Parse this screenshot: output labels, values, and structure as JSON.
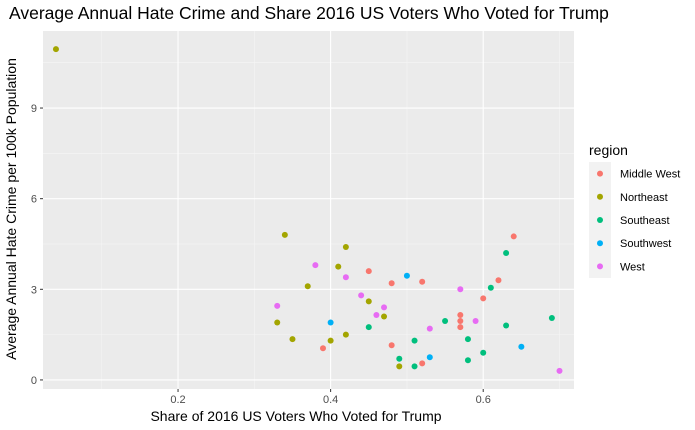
{
  "chart_data": {
    "type": "scatter",
    "title": "Average Annual Hate Crime and Share 2016 US Voters Who Voted for Trump",
    "xlabel": "Share of 2016 US Voters Who Voted for Trump",
    "ylabel": "Average Annual Hate Crime per 100k Population",
    "xlim": [
      0.023,
      0.719
    ],
    "ylim": [
      -0.3,
      11.55
    ],
    "xticks": [
      0.2,
      0.4,
      0.6
    ],
    "yticks": [
      0,
      3,
      6,
      9
    ],
    "grid": true,
    "legend_position": "right",
    "legend_title": "region",
    "series": [
      {
        "name": "Middle West",
        "color": "#F8766D",
        "points": [
          {
            "x": 0.39,
            "y": 1.05
          },
          {
            "x": 0.45,
            "y": 3.6
          },
          {
            "x": 0.48,
            "y": 3.2
          },
          {
            "x": 0.48,
            "y": 1.15
          },
          {
            "x": 0.52,
            "y": 3.25
          },
          {
            "x": 0.52,
            "y": 0.55
          },
          {
            "x": 0.57,
            "y": 2.15
          },
          {
            "x": 0.57,
            "y": 1.95
          },
          {
            "x": 0.57,
            "y": 1.75
          },
          {
            "x": 0.6,
            "y": 2.7
          },
          {
            "x": 0.62,
            "y": 3.3
          },
          {
            "x": 0.64,
            "y": 4.75
          }
        ]
      },
      {
        "name": "Northeast",
        "color": "#A3A500",
        "points": [
          {
            "x": 0.04,
            "y": 10.95
          },
          {
            "x": 0.33,
            "y": 1.9
          },
          {
            "x": 0.34,
            "y": 4.8
          },
          {
            "x": 0.35,
            "y": 1.35
          },
          {
            "x": 0.37,
            "y": 3.1
          },
          {
            "x": 0.4,
            "y": 1.3
          },
          {
            "x": 0.41,
            "y": 3.75
          },
          {
            "x": 0.42,
            "y": 4.4
          },
          {
            "x": 0.42,
            "y": 1.5
          },
          {
            "x": 0.45,
            "y": 2.6
          },
          {
            "x": 0.47,
            "y": 2.1
          },
          {
            "x": 0.49,
            "y": 0.45
          }
        ]
      },
      {
        "name": "Southeast",
        "color": "#00BF7D",
        "points": [
          {
            "x": 0.45,
            "y": 1.75
          },
          {
            "x": 0.49,
            "y": 0.7
          },
          {
            "x": 0.51,
            "y": 1.3
          },
          {
            "x": 0.51,
            "y": 0.45
          },
          {
            "x": 0.55,
            "y": 1.95
          },
          {
            "x": 0.58,
            "y": 1.35
          },
          {
            "x": 0.58,
            "y": 0.65
          },
          {
            "x": 0.6,
            "y": 0.9
          },
          {
            "x": 0.61,
            "y": 3.05
          },
          {
            "x": 0.63,
            "y": 4.2
          },
          {
            "x": 0.63,
            "y": 1.8
          },
          {
            "x": 0.69,
            "y": 2.05
          }
        ]
      },
      {
        "name": "Southwest",
        "color": "#00B0F6",
        "points": [
          {
            "x": 0.4,
            "y": 1.9
          },
          {
            "x": 0.5,
            "y": 3.45
          },
          {
            "x": 0.53,
            "y": 0.75
          },
          {
            "x": 0.65,
            "y": 1.1
          }
        ]
      },
      {
        "name": "West",
        "color": "#E76BF3",
        "points": [
          {
            "x": 0.33,
            "y": 2.45
          },
          {
            "x": 0.38,
            "y": 3.8
          },
          {
            "x": 0.42,
            "y": 3.4
          },
          {
            "x": 0.44,
            "y": 2.8
          },
          {
            "x": 0.46,
            "y": 2.15
          },
          {
            "x": 0.47,
            "y": 2.4
          },
          {
            "x": 0.53,
            "y": 1.7
          },
          {
            "x": 0.57,
            "y": 3.0
          },
          {
            "x": 0.59,
            "y": 1.95
          },
          {
            "x": 0.7,
            "y": 0.3
          }
        ]
      }
    ]
  }
}
